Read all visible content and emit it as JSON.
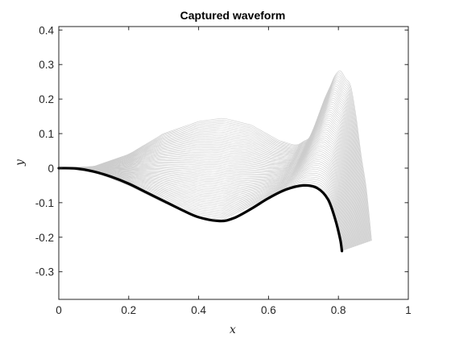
{
  "chart_data": {
    "type": "line",
    "title": "Captured waveform",
    "xlabel": "x",
    "ylabel": "y",
    "xlim": [
      0,
      1
    ],
    "ylim": [
      -0.38,
      0.41
    ],
    "xticks": [
      0,
      0.2,
      0.4,
      0.6,
      0.8,
      1
    ],
    "xtick_labels": [
      "0",
      "0.2",
      "0.4",
      "0.6",
      "0.8",
      "1"
    ],
    "yticks": [
      0.4,
      0.3,
      0.2,
      0.1,
      0,
      -0.1,
      -0.2,
      -0.3
    ],
    "ytick_labels": [
      "0.4",
      "0.3",
      "0.2",
      "0.1",
      "0",
      "-0.1",
      "-0.2",
      "-0.3"
    ],
    "grid": false,
    "legend": "none",
    "colors": {
      "background_curves": "#cccccc",
      "highlighted_curve": "#000000"
    },
    "background_family": {
      "count": 60,
      "description_free": true,
      "first_curve": [
        [
          0,
          0
        ],
        [
          0.1,
          -0.01
        ],
        [
          0.2,
          -0.05
        ],
        [
          0.3,
          -0.1
        ],
        [
          0.4,
          -0.145
        ],
        [
          0.46,
          -0.153
        ],
        [
          0.55,
          -0.11
        ],
        [
          0.65,
          -0.06
        ],
        [
          0.7,
          -0.05
        ],
        [
          0.75,
          -0.06
        ],
        [
          0.78,
          -0.1
        ],
        [
          0.8,
          -0.2
        ],
        [
          0.81,
          -0.24
        ]
      ],
      "last_curve": [
        [
          0,
          0
        ],
        [
          0.1,
          0.005
        ],
        [
          0.2,
          0.04
        ],
        [
          0.3,
          0.1
        ],
        [
          0.4,
          0.135
        ],
        [
          0.47,
          0.145
        ],
        [
          0.55,
          0.125
        ],
        [
          0.63,
          0.08
        ],
        [
          0.68,
          0.065
        ],
        [
          0.72,
          0.09
        ],
        [
          0.76,
          0.2
        ],
        [
          0.8,
          0.29
        ],
        [
          0.84,
          0.23
        ],
        [
          0.87,
          0.0
        ],
        [
          0.89,
          -0.12
        ],
        [
          0.895,
          -0.21
        ]
      ]
    },
    "series": [
      {
        "values": [
          [
            0,
            0
          ],
          [
            0.05,
            -0.001
          ],
          [
            0.1,
            -0.01
          ],
          [
            0.15,
            -0.025
          ],
          [
            0.2,
            -0.045
          ],
          [
            0.25,
            -0.07
          ],
          [
            0.3,
            -0.095
          ],
          [
            0.35,
            -0.12
          ],
          [
            0.4,
            -0.142
          ],
          [
            0.46,
            -0.153
          ],
          [
            0.5,
            -0.145
          ],
          [
            0.55,
            -0.118
          ],
          [
            0.6,
            -0.087
          ],
          [
            0.65,
            -0.062
          ],
          [
            0.7,
            -0.05
          ],
          [
            0.74,
            -0.058
          ],
          [
            0.77,
            -0.09
          ],
          [
            0.79,
            -0.145
          ],
          [
            0.805,
            -0.205
          ],
          [
            0.81,
            -0.24
          ]
        ]
      }
    ]
  }
}
